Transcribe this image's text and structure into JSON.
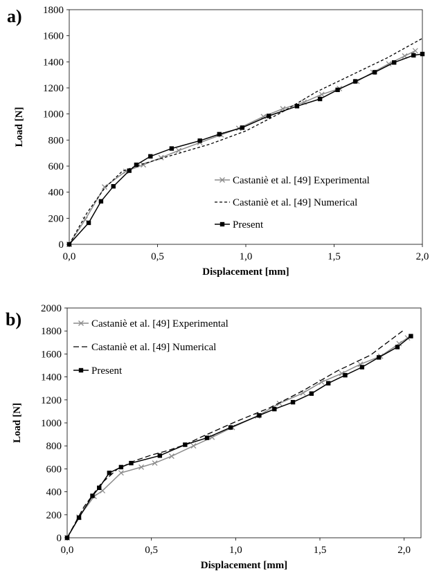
{
  "chart_data": [
    {
      "panel_label": "a)",
      "type": "line",
      "xlabel": "Displacement [mm]",
      "ylabel": "Load [N]",
      "xlim": [
        0,
        2
      ],
      "ylim": [
        0,
        1800
      ],
      "x_ticks": [
        "0,0",
        "0,5",
        "1,0",
        "1,5",
        "2,0"
      ],
      "y_ticks": [
        "0",
        "200",
        "400",
        "600",
        "800",
        "1000",
        "1200",
        "1400",
        "1600",
        "1800"
      ],
      "grid": false,
      "legend_position": "lower-right",
      "series": [
        {
          "name": "Castaniè et al. [49] Experimental",
          "color": "#8c8c8c",
          "marker": "x",
          "dash": "solid",
          "x": [
            0.0,
            0.09,
            0.2,
            0.32,
            0.42,
            0.52,
            0.62,
            0.74,
            0.86,
            0.96,
            1.1,
            1.21,
            1.33,
            1.43,
            1.53,
            1.63,
            1.72,
            1.81,
            1.9,
            1.96
          ],
          "y": [
            0,
            190,
            440,
            560,
            610,
            665,
            720,
            780,
            840,
            890,
            980,
            1040,
            1090,
            1150,
            1195,
            1250,
            1320,
            1385,
            1445,
            1485
          ]
        },
        {
          "name": "Castaniè et al. [49] Numerical",
          "color": "#000000",
          "marker": "none",
          "dash": "short",
          "x": [
            0.0,
            0.1,
            0.2,
            0.3,
            0.4,
            0.6,
            0.8,
            1.0,
            1.2,
            1.4,
            1.6,
            1.8,
            2.0
          ],
          "y": [
            0,
            240,
            430,
            560,
            610,
            690,
            770,
            870,
            1010,
            1170,
            1300,
            1430,
            1580
          ]
        },
        {
          "name": "Present",
          "color": "#000000",
          "marker": "square",
          "dash": "solid",
          "x": [
            0.0,
            0.11,
            0.18,
            0.25,
            0.34,
            0.38,
            0.46,
            0.58,
            0.74,
            0.85,
            0.98,
            1.13,
            1.29,
            1.42,
            1.52,
            1.62,
            1.73,
            1.84,
            1.95,
            2.0
          ],
          "y": [
            0,
            165,
            330,
            445,
            565,
            610,
            675,
            735,
            795,
            845,
            895,
            985,
            1060,
            1115,
            1185,
            1250,
            1320,
            1395,
            1450,
            1460
          ]
        }
      ]
    },
    {
      "panel_label": "b)",
      "type": "line",
      "xlabel": "Displacement [mm]",
      "ylabel": "Load [N]",
      "xlim": [
        0,
        2.1
      ],
      "ylim": [
        0,
        2000
      ],
      "x_ticks": [
        "0,0",
        "0,5",
        "1,0",
        "1,5",
        "2,0"
      ],
      "y_ticks": [
        "0",
        "200",
        "400",
        "600",
        "800",
        "1000",
        "1200",
        "1400",
        "1600",
        "1800",
        "2000"
      ],
      "grid": false,
      "legend_position": "upper-left",
      "series": [
        {
          "name": "Castaniè et al. [49] Experimental",
          "color": "#8c8c8c",
          "marker": "x",
          "dash": "solid",
          "x": [
            0.0,
            0.07,
            0.16,
            0.21,
            0.32,
            0.44,
            0.52,
            0.62,
            0.75,
            0.86,
            0.98,
            1.13,
            1.26,
            1.4,
            1.51,
            1.63,
            1.74,
            1.86,
            1.97,
            2.02
          ],
          "y": [
            0,
            180,
            360,
            410,
            565,
            615,
            650,
            710,
            800,
            875,
            960,
            1060,
            1170,
            1260,
            1355,
            1430,
            1510,
            1580,
            1690,
            1740
          ]
        },
        {
          "name": "Castaniè et al. [49] Numerical",
          "color": "#000000",
          "marker": "none",
          "dash": "long",
          "x": [
            0.0,
            0.1,
            0.2,
            0.3,
            0.4,
            0.5,
            0.6,
            0.7,
            0.8,
            1.0,
            1.2,
            1.4,
            1.6,
            1.8,
            2.0
          ],
          "y": [
            0,
            270,
            470,
            600,
            670,
            720,
            760,
            810,
            880,
            1010,
            1130,
            1280,
            1450,
            1590,
            1810
          ]
        },
        {
          "name": "Present",
          "color": "#000000",
          "marker": "square",
          "dash": "solid",
          "x": [
            0.0,
            0.07,
            0.15,
            0.19,
            0.25,
            0.32,
            0.38,
            0.55,
            0.7,
            0.83,
            0.97,
            1.14,
            1.23,
            1.34,
            1.45,
            1.55,
            1.65,
            1.75,
            1.85,
            1.96,
            2.04
          ],
          "y": [
            0,
            175,
            365,
            435,
            565,
            615,
            650,
            715,
            810,
            870,
            960,
            1065,
            1120,
            1180,
            1255,
            1345,
            1415,
            1485,
            1570,
            1660,
            1755
          ]
        }
      ]
    }
  ]
}
